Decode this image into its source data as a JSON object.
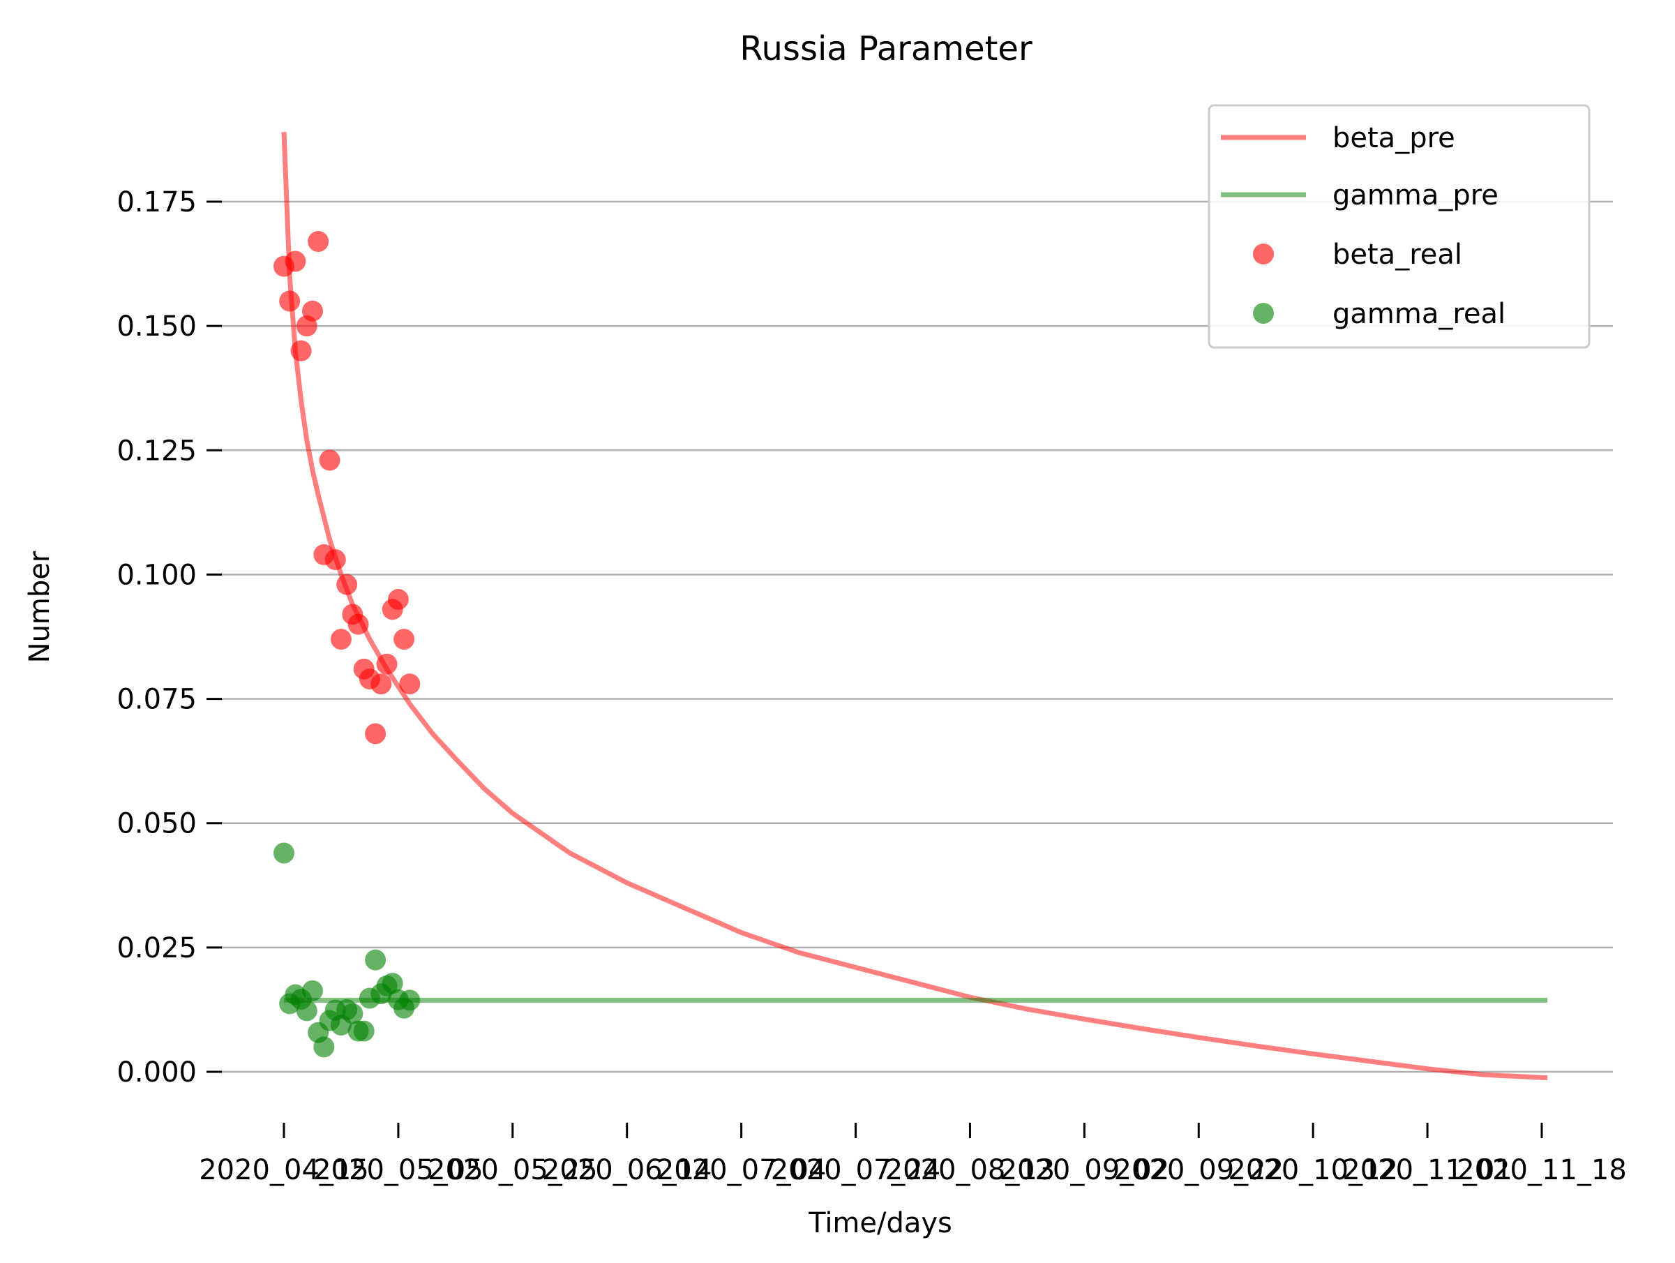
{
  "chart_data": {
    "type": "line+scatter",
    "title": "Russia Parameter",
    "xlabel": "Time/days",
    "ylabel": "Number",
    "ylim": [
      -0.01,
      0.19
    ],
    "grid": "y",
    "legend_position": "top-right",
    "y_ticks": [
      "0.000",
      "0.025",
      "0.050",
      "0.075",
      "0.100",
      "0.125",
      "0.150",
      "0.175"
    ],
    "x_ticks": [
      "2020_04_15",
      "2020_05_05",
      "2020_05_25",
      "2020_06_14",
      "2020_07_04",
      "2020_07_24",
      "2020_08_13",
      "2020_09_02",
      "2020_09_22",
      "2020_10_12",
      "2020_11_01",
      "2020_11_18"
    ],
    "x_tick_offsets": [
      0,
      20,
      40,
      60,
      80,
      100,
      120,
      140,
      160,
      180,
      200,
      220
    ],
    "colors": {
      "beta": "#ff0000",
      "gamma": "#008000",
      "grid": "#b0b0b0"
    },
    "series": [
      {
        "name": "beta_pre",
        "kind": "line",
        "color": "#ff0000",
        "x": [
          0,
          1,
          2,
          3,
          4,
          5,
          6,
          8,
          10,
          12,
          15,
          18,
          22,
          26,
          30,
          35,
          40,
          45,
          50,
          55,
          60,
          70,
          80,
          90,
          100,
          110,
          120,
          130,
          140,
          150,
          160,
          170,
          180,
          190,
          200,
          210,
          221
        ],
        "values": [
          0.189,
          0.16,
          0.145,
          0.135,
          0.127,
          0.121,
          0.116,
          0.107,
          0.1,
          0.094,
          0.087,
          0.081,
          0.074,
          0.068,
          0.063,
          0.057,
          0.052,
          0.048,
          0.044,
          0.041,
          0.038,
          0.033,
          0.028,
          0.024,
          0.021,
          0.018,
          0.015,
          0.0126,
          0.0106,
          0.0087,
          0.0069,
          0.0052,
          0.0036,
          0.0021,
          0.0006,
          -0.0006,
          -0.0012
        ]
      },
      {
        "name": "gamma_pre",
        "kind": "line",
        "color": "#008000",
        "x": [
          0,
          221
        ],
        "values": [
          0.0144,
          0.0144
        ]
      },
      {
        "name": "beta_real",
        "kind": "scatter",
        "color": "#ff0000",
        "x": [
          0,
          1,
          2,
          3,
          4,
          5,
          6,
          7,
          8,
          9,
          10,
          11,
          12,
          13,
          14,
          15,
          16,
          17,
          18,
          19,
          20,
          21,
          22
        ],
        "values": [
          0.162,
          0.155,
          0.163,
          0.145,
          0.15,
          0.153,
          0.167,
          0.104,
          0.123,
          0.103,
          0.087,
          0.098,
          0.092,
          0.09,
          0.081,
          0.079,
          0.068,
          0.078,
          0.082,
          0.093,
          0.095,
          0.087,
          0.078
        ]
      },
      {
        "name": "gamma_real",
        "kind": "scatter",
        "color": "#008000",
        "x": [
          0,
          1,
          2,
          3,
          4,
          5,
          6,
          7,
          8,
          9,
          10,
          11,
          12,
          13,
          14,
          15,
          16,
          17,
          18,
          19,
          20,
          21,
          22
        ],
        "values": [
          0.044,
          0.0137,
          0.0155,
          0.0146,
          0.0123,
          0.0163,
          0.0079,
          0.005,
          0.0103,
          0.0124,
          0.0094,
          0.0125,
          0.0117,
          0.0082,
          0.0082,
          0.0148,
          0.0225,
          0.0157,
          0.0173,
          0.0178,
          0.0145,
          0.0128,
          0.0144
        ]
      }
    ]
  }
}
